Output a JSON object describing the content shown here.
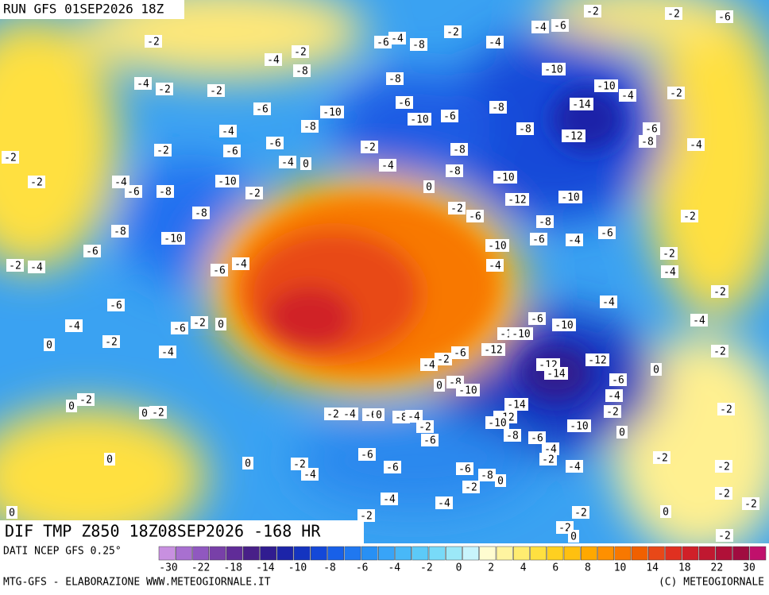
{
  "header": {
    "title": "RUN GFS 01SEP2026 18Z"
  },
  "map": {
    "labels": [
      -2,
      -2,
      -4,
      -6,
      -4,
      -8,
      -2,
      -4,
      -4,
      -6,
      -2,
      -2,
      -6,
      -4,
      -2,
      -2,
      -8,
      -8,
      -10,
      -10,
      -4,
      -2,
      -6,
      -10,
      -6,
      -10,
      -6,
      -8,
      -14,
      -4,
      -8,
      -8,
      -12,
      -6,
      -8,
      -4,
      -2,
      -6,
      -6,
      -2,
      -8,
      -2,
      -4,
      0,
      -4,
      -8,
      -2,
      -4,
      -6,
      -8,
      -10,
      -2,
      0,
      -10,
      -12,
      -10,
      -2,
      -6,
      -8,
      -8,
      -2,
      -8,
      -10,
      -6,
      -4,
      -6,
      -10,
      -6,
      -2,
      -2,
      -4,
      -6,
      -4,
      -4,
      -4,
      -6,
      -4,
      -2,
      -4,
      -6,
      -2,
      0,
      -6,
      -10,
      -4,
      -10,
      -10,
      -2,
      0,
      -4,
      -6,
      -12,
      -2,
      -2,
      -4,
      -12,
      -12,
      -14,
      -6,
      0,
      -8,
      -10,
      0,
      -4,
      -2,
      0,
      -14,
      -2,
      0,
      -2,
      -4,
      -6,
      0,
      -8,
      -4,
      -2,
      -2,
      -2,
      -12,
      -10,
      -10,
      0,
      -6,
      -8,
      -6,
      -6,
      -4,
      -2,
      -4,
      0,
      0,
      -2,
      -4,
      -2,
      -6,
      -6,
      -8,
      0,
      -2,
      -2,
      -4,
      -4,
      -2,
      -2,
      0,
      -2,
      -2,
      0,
      -2,
      0,
      -2
    ]
  },
  "footer": {
    "product": "DIF TMP Z850 18Z08SEP2026 -168 HR",
    "source": "DATI NCEP GFS 0.25°",
    "credit": "MTG-GFS - ELABORAZIONE WWW.METEOGIORNALE.IT",
    "copyright": "(C) METEOGIORNALE"
  },
  "legend": {
    "ticks": [
      -30,
      -22,
      -18,
      -14,
      -10,
      -8,
      -6,
      -4,
      -2,
      0,
      2,
      4,
      6,
      8,
      10,
      14,
      18,
      22,
      30
    ],
    "colors": [
      "#c890e0",
      "#a870d0",
      "#9058c0",
      "#7840a8",
      "#602c98",
      "#482088",
      "#301c90",
      "#1c24a8",
      "#1434c0",
      "#1448d8",
      "#1860e8",
      "#2078f0",
      "#2890f4",
      "#38a4f8",
      "#48b8f8",
      "#5ccaf8",
      "#78daf8",
      "#9ce8f8",
      "#c8f4fc",
      "#fffcd0",
      "#fff4a0",
      "#ffec70",
      "#ffe040",
      "#ffd020",
      "#ffc010",
      "#ffa800",
      "#ff9000",
      "#f87800",
      "#f06000",
      "#e84818",
      "#e03020",
      "#d02028",
      "#c01830",
      "#b01038",
      "#a00c40",
      "#c0106c"
    ]
  }
}
